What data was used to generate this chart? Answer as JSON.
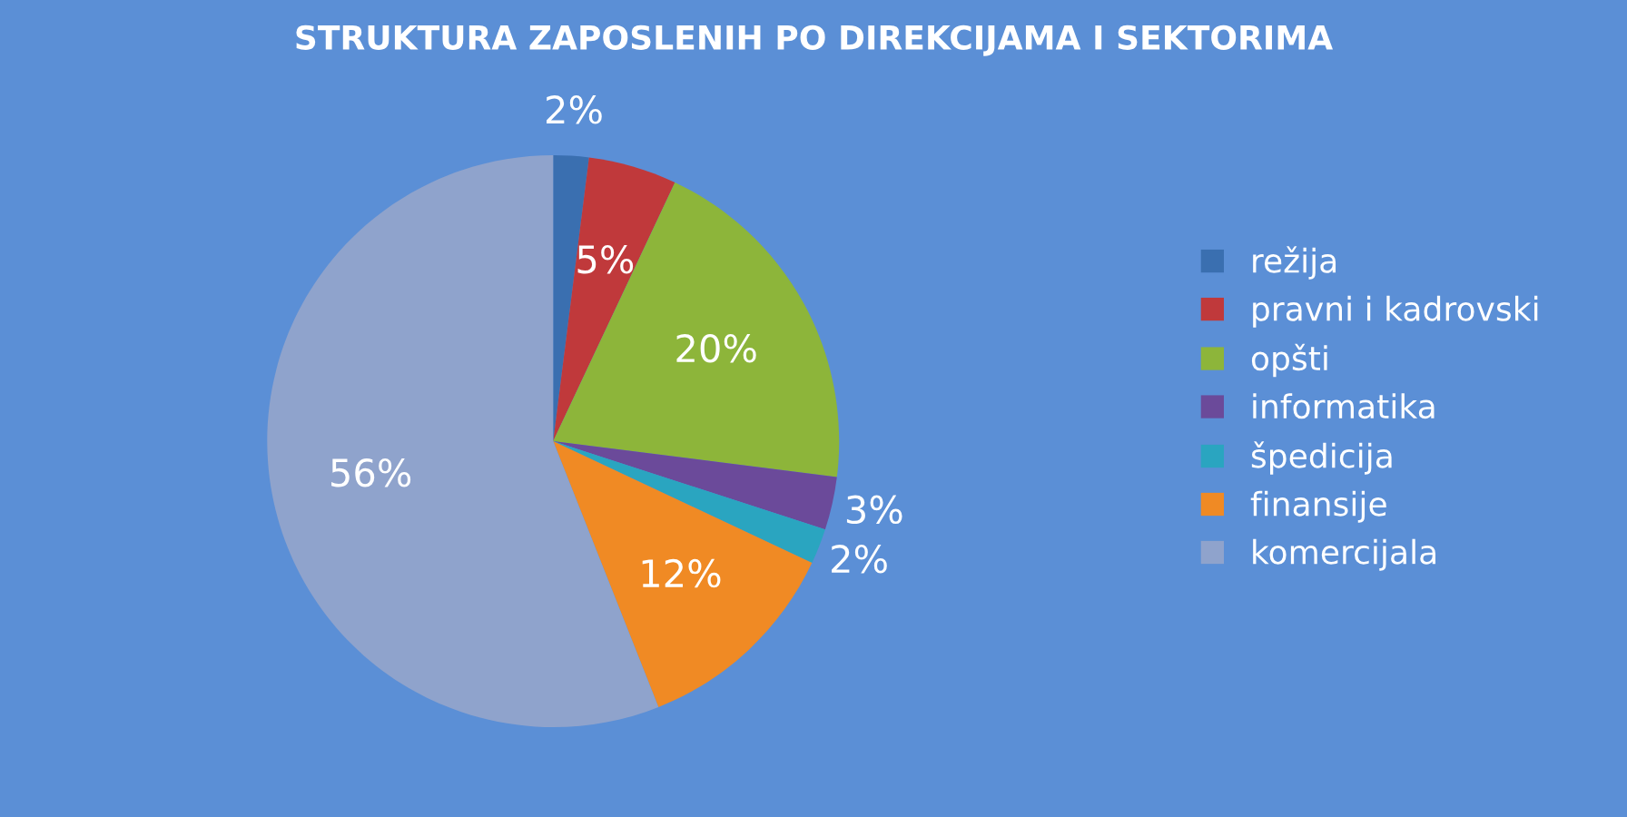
{
  "chart_data": {
    "type": "pie",
    "title": "STRUKTURA ZAPOSLENIH PO DIREKCIJAMA I SEKTORIMA",
    "categories": [
      "režija",
      "pravni i kadrovski",
      "opšti",
      "informatika",
      "špedicija",
      "finansije",
      "komercijala"
    ],
    "values": [
      2,
      5,
      20,
      3,
      2,
      12,
      56
    ],
    "value_labels": [
      "2%",
      "5%",
      "20%",
      "3%",
      "2%",
      "12%",
      "56%"
    ],
    "colors": [
      "#3a6fb0",
      "#c0393b",
      "#8db53a",
      "#6b4a9a",
      "#2aa5c0",
      "#f08a24",
      "#8fa3cc"
    ],
    "legend": "right"
  }
}
